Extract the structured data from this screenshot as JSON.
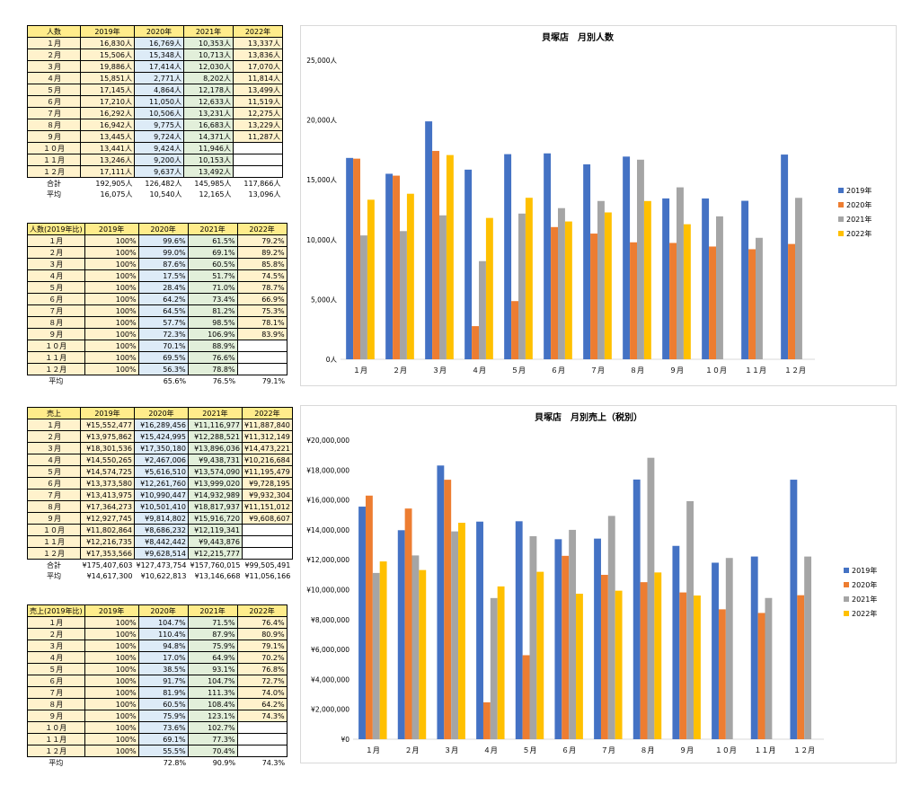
{
  "tables": [
    {
      "id": "visitors",
      "headers": [
        "人数",
        "2019年",
        "2020年",
        "2021年",
        "2022年"
      ],
      "rows": [
        [
          "１月",
          "16,830人",
          "16,769人",
          "10,353人",
          "13,337人"
        ],
        [
          "２月",
          "15,506人",
          "15,348人",
          "10,713人",
          "13,836人"
        ],
        [
          "３月",
          "19,886人",
          "17,414人",
          "12,030人",
          "17,070人"
        ],
        [
          "４月",
          "15,851人",
          "2,771人",
          "8,202人",
          "11,814人"
        ],
        [
          "５月",
          "17,145人",
          "4,864人",
          "12,178人",
          "13,499人"
        ],
        [
          "６月",
          "17,210人",
          "11,050人",
          "12,633人",
          "11,519人"
        ],
        [
          "７月",
          "16,292人",
          "10,506人",
          "13,231人",
          "12,275人"
        ],
        [
          "８月",
          "16,942人",
          "9,775人",
          "16,683人",
          "13,229人"
        ],
        [
          "９月",
          "13,445人",
          "9,724人",
          "14,371人",
          "11,287人"
        ],
        [
          "１０月",
          "13,441人",
          "9,424人",
          "11,946人",
          ""
        ],
        [
          "１１月",
          "13,246人",
          "9,200人",
          "10,153人",
          ""
        ],
        [
          "１２月",
          "17,111人",
          "9,637人",
          "13,492人",
          ""
        ]
      ],
      "footer": [
        [
          "合計",
          "192,905人",
          "126,482人",
          "145,985人",
          "117,866人"
        ],
        [
          "平均",
          "16,075人",
          "10,540人",
          "12,165人",
          "13,096人"
        ]
      ]
    },
    {
      "id": "visitors_ratio",
      "headers": [
        "人数(2019年比)",
        "2019年",
        "2020年",
        "2021年",
        "2022年"
      ],
      "rows": [
        [
          "１月",
          "100%",
          "99.6%",
          "61.5%",
          "79.2%"
        ],
        [
          "２月",
          "100%",
          "99.0%",
          "69.1%",
          "89.2%"
        ],
        [
          "３月",
          "100%",
          "87.6%",
          "60.5%",
          "85.8%"
        ],
        [
          "４月",
          "100%",
          "17.5%",
          "51.7%",
          "74.5%"
        ],
        [
          "５月",
          "100%",
          "28.4%",
          "71.0%",
          "78.7%"
        ],
        [
          "６月",
          "100%",
          "64.2%",
          "73.4%",
          "66.9%"
        ],
        [
          "７月",
          "100%",
          "64.5%",
          "81.2%",
          "75.3%"
        ],
        [
          "８月",
          "100%",
          "57.7%",
          "98.5%",
          "78.1%"
        ],
        [
          "９月",
          "100%",
          "72.3%",
          "106.9%",
          "83.9%"
        ],
        [
          "１０月",
          "100%",
          "70.1%",
          "88.9%",
          ""
        ],
        [
          "１１月",
          "100%",
          "69.5%",
          "76.6%",
          ""
        ],
        [
          "１２月",
          "100%",
          "56.3%",
          "78.8%",
          ""
        ]
      ],
      "footer": [
        [
          "平均",
          "",
          "65.6%",
          "76.5%",
          "79.1%"
        ]
      ]
    },
    {
      "id": "sales",
      "headers": [
        "売上",
        "2019年",
        "2020年",
        "2021年",
        "2022年"
      ],
      "rows": [
        [
          "１月",
          "¥15,552,477",
          "¥16,289,456",
          "¥11,116,977",
          "¥11,887,840"
        ],
        [
          "２月",
          "¥13,975,862",
          "¥15,424,995",
          "¥12,288,521",
          "¥11,312,149"
        ],
        [
          "３月",
          "¥18,301,536",
          "¥17,350,180",
          "¥13,896,036",
          "¥14,473,221"
        ],
        [
          "４月",
          "¥14,550,265",
          "¥2,467,006",
          "¥9,438,731",
          "¥10,216,684"
        ],
        [
          "５月",
          "¥14,574,725",
          "¥5,616,510",
          "¥13,574,090",
          "¥11,195,479"
        ],
        [
          "６月",
          "¥13,373,580",
          "¥12,261,760",
          "¥13,999,020",
          "¥9,728,195"
        ],
        [
          "７月",
          "¥13,413,975",
          "¥10,990,447",
          "¥14,932,989",
          "¥9,932,304"
        ],
        [
          "８月",
          "¥17,364,273",
          "¥10,501,410",
          "¥18,817,937",
          "¥11,151,012"
        ],
        [
          "９月",
          "¥12,927,745",
          "¥9,814,802",
          "¥15,916,720",
          "¥9,608,607"
        ],
        [
          "１０月",
          "¥11,802,864",
          "¥8,686,232",
          "¥12,119,341",
          ""
        ],
        [
          "１１月",
          "¥12,216,735",
          "¥8,442,442",
          "¥9,443,876",
          ""
        ],
        [
          "１２月",
          "¥17,353,566",
          "¥9,628,514",
          "¥12,215,777",
          ""
        ]
      ],
      "footer": [
        [
          "合計",
          "¥175,407,603",
          "¥127,473,754",
          "¥157,760,015",
          "¥99,505,491"
        ],
        [
          "平均",
          "¥14,617,300",
          "¥10,622,813",
          "¥13,146,668",
          "¥11,056,166"
        ]
      ]
    },
    {
      "id": "sales_ratio",
      "headers": [
        "売上(2019年比)",
        "2019年",
        "2020年",
        "2021年",
        "2022年"
      ],
      "rows": [
        [
          "１月",
          "100%",
          "104.7%",
          "71.5%",
          "76.4%"
        ],
        [
          "２月",
          "100%",
          "110.4%",
          "87.9%",
          "80.9%"
        ],
        [
          "３月",
          "100%",
          "94.8%",
          "75.9%",
          "79.1%"
        ],
        [
          "４月",
          "100%",
          "17.0%",
          "64.9%",
          "70.2%"
        ],
        [
          "５月",
          "100%",
          "38.5%",
          "93.1%",
          "76.8%"
        ],
        [
          "６月",
          "100%",
          "91.7%",
          "104.7%",
          "72.7%"
        ],
        [
          "７月",
          "100%",
          "81.9%",
          "111.3%",
          "74.0%"
        ],
        [
          "８月",
          "100%",
          "60.5%",
          "108.4%",
          "64.2%"
        ],
        [
          "９月",
          "100%",
          "75.9%",
          "123.1%",
          "74.3%"
        ],
        [
          "１０月",
          "100%",
          "73.6%",
          "102.7%",
          ""
        ],
        [
          "１１月",
          "100%",
          "69.1%",
          "77.3%",
          ""
        ],
        [
          "１２月",
          "100%",
          "55.5%",
          "70.4%",
          ""
        ]
      ],
      "footer": [
        [
          "平均",
          "",
          "72.8%",
          "90.9%",
          "74.3%"
        ]
      ]
    }
  ],
  "chart_data": [
    {
      "type": "bar",
      "title": "貝塚店　月別人数",
      "categories": [
        "１月",
        "２月",
        "３月",
        "４月",
        "５月",
        "６月",
        "７月",
        "８月",
        "９月",
        "１０月",
        "１１月",
        "１２月"
      ],
      "ylim": [
        0,
        25000
      ],
      "yticks": [
        0,
        5000,
        10000,
        15000,
        20000,
        25000
      ],
      "ytick_labels": [
        "0人",
        "5,000人",
        "10,000人",
        "15,000人",
        "20,000人",
        "25,000人"
      ],
      "grid": false,
      "legend": "right",
      "series": [
        {
          "name": "2019年",
          "color": "#4472c4",
          "values": [
            16830,
            15506,
            19886,
            15851,
            17145,
            17210,
            16292,
            16942,
            13445,
            13441,
            13246,
            17111
          ]
        },
        {
          "name": "2020年",
          "color": "#ed7d31",
          "values": [
            16769,
            15348,
            17414,
            2771,
            4864,
            11050,
            10506,
            9775,
            9724,
            9424,
            9200,
            9637
          ]
        },
        {
          "name": "2021年",
          "color": "#a5a5a5",
          "values": [
            10353,
            10713,
            12030,
            8202,
            12178,
            12633,
            13231,
            16683,
            14371,
            11946,
            10153,
            13492
          ]
        },
        {
          "name": "2022年",
          "color": "#ffc000",
          "values": [
            13337,
            13836,
            17070,
            11814,
            13499,
            11519,
            12275,
            13229,
            11287,
            null,
            null,
            null
          ]
        }
      ]
    },
    {
      "type": "bar",
      "title": "貝塚店　月別売上（税別）",
      "categories": [
        "１月",
        "２月",
        "３月",
        "４月",
        "５月",
        "６月",
        "７月",
        "８月",
        "９月",
        "１０月",
        "１１月",
        "１２月"
      ],
      "ylim": [
        0,
        20000000
      ],
      "yticks": [
        0,
        2000000,
        4000000,
        6000000,
        8000000,
        10000000,
        12000000,
        14000000,
        16000000,
        18000000,
        20000000
      ],
      "ytick_labels": [
        "¥0",
        "¥2,000,000",
        "¥4,000,000",
        "¥6,000,000",
        "¥8,000,000",
        "¥10,000,000",
        "¥12,000,000",
        "¥14,000,000",
        "¥16,000,000",
        "¥18,000,000",
        "¥20,000,000"
      ],
      "grid": false,
      "legend": "right",
      "series": [
        {
          "name": "2019年",
          "color": "#4472c4",
          "values": [
            15552477,
            13975862,
            18301536,
            14550265,
            14574725,
            13373580,
            13413975,
            17364273,
            12927745,
            11802864,
            12216735,
            17353566
          ]
        },
        {
          "name": "2020年",
          "color": "#ed7d31",
          "values": [
            16289456,
            15424995,
            17350180,
            2467006,
            5616510,
            12261760,
            10990447,
            10501410,
            9814802,
            8686232,
            8442442,
            9628514
          ]
        },
        {
          "name": "2021年",
          "color": "#a5a5a5",
          "values": [
            11116977,
            12288521,
            13896036,
            9438731,
            13574090,
            13999020,
            14932989,
            18817937,
            15916720,
            12119341,
            9443876,
            12215777
          ]
        },
        {
          "name": "2022年",
          "color": "#ffc000",
          "values": [
            11887840,
            11312149,
            14473221,
            10216684,
            11195479,
            9728195,
            9932304,
            11151012,
            9608607,
            null,
            null,
            null
          ]
        }
      ]
    }
  ]
}
